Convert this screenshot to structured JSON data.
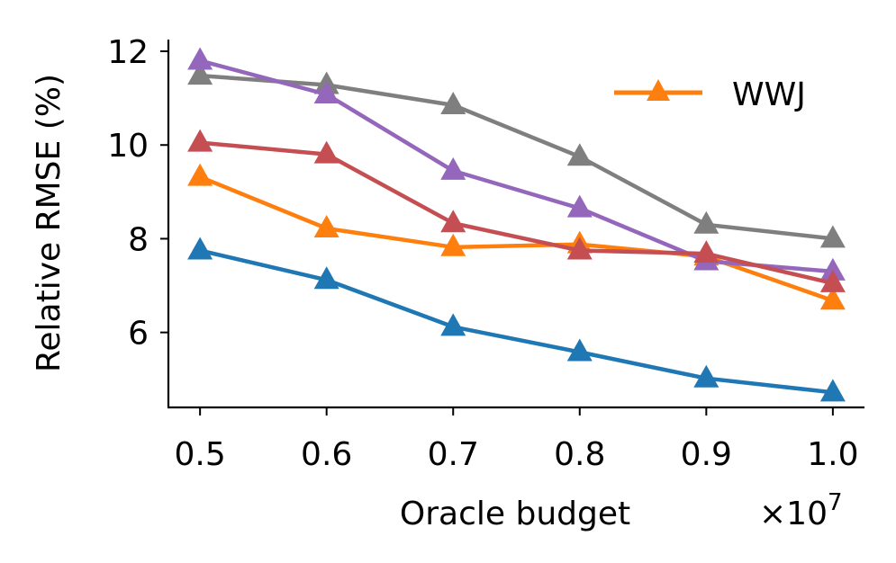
{
  "chart_data": {
    "type": "line",
    "xlabel": "Oracle budget",
    "ylabel": "Relative RMSE (%)",
    "x_scale_label": "×10",
    "x_scale_exponent": "7",
    "x": [
      0.5,
      0.6,
      0.7,
      0.8,
      0.9,
      1.0
    ],
    "x_tick_labels": [
      "0.5",
      "0.6",
      "0.7",
      "0.8",
      "0.9",
      "1.0"
    ],
    "y_ticks": [
      6,
      8,
      10,
      12
    ],
    "y_tick_labels": [
      "6",
      "8",
      "10",
      "12"
    ],
    "xlim": [
      0.475,
      1.025
    ],
    "ylim": [
      4.4,
      12.25
    ],
    "marker": "triangle-up",
    "legend": {
      "position": "top-right",
      "entries": [
        "WWJ"
      ]
    },
    "series": [
      {
        "name": "blue",
        "color": "#1f77b4",
        "values": [
          7.75,
          7.12,
          6.12,
          5.58,
          5.02,
          4.72
        ]
      },
      {
        "name": "WWJ",
        "color": "#ff7f0e",
        "values": [
          9.32,
          8.22,
          7.82,
          7.88,
          7.62,
          6.68
        ]
      },
      {
        "name": "gray",
        "color": "#7f7f7f",
        "values": [
          11.48,
          11.28,
          10.85,
          9.75,
          8.3,
          8.0
        ]
      },
      {
        "name": "purple",
        "color": "#9467bd",
        "values": [
          11.8,
          11.08,
          9.45,
          8.65,
          7.52,
          7.3
        ]
      },
      {
        "name": "red",
        "color": "#c44e52",
        "values": [
          10.05,
          9.8,
          8.33,
          7.75,
          7.68,
          7.05
        ]
      }
    ]
  }
}
